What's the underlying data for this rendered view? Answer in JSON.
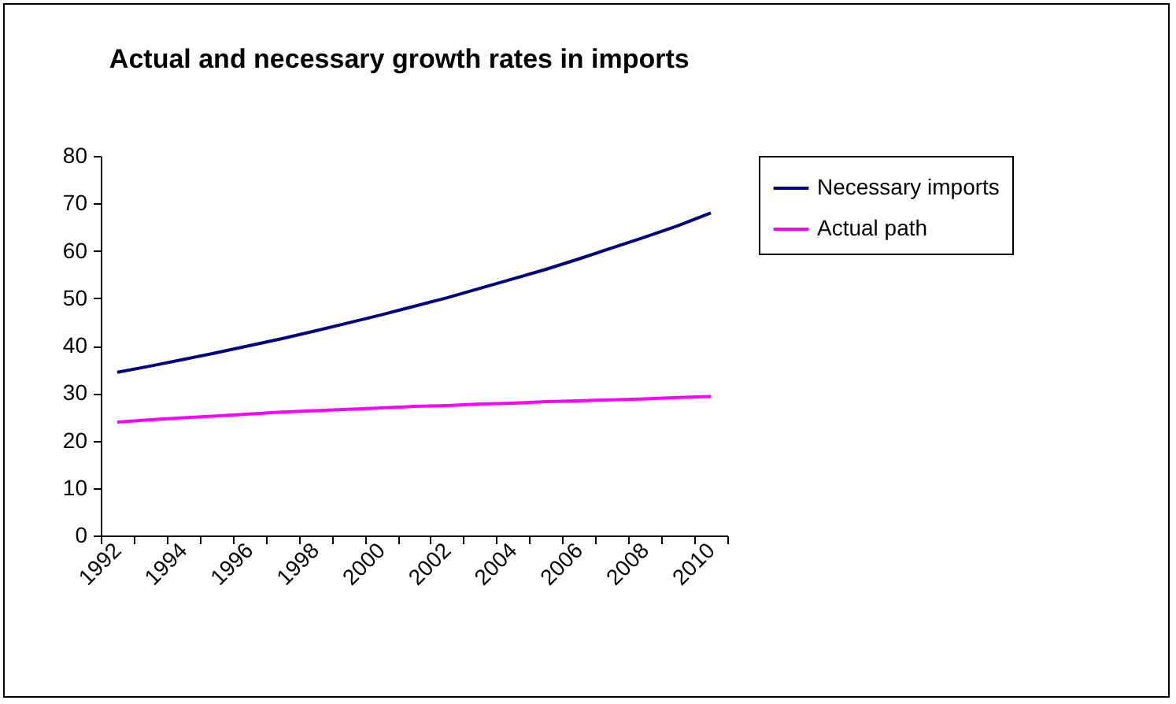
{
  "chart_data": {
    "type": "line",
    "title": "Actual and necessary growth rates in imports",
    "categories": [
      "1992",
      null,
      "1994",
      null,
      "1996",
      null,
      "1998",
      null,
      "2000",
      null,
      "2002",
      null,
      "2004",
      null,
      "2006",
      null,
      "2008",
      null,
      "2010"
    ],
    "series": [
      {
        "name": "Necessary imports",
        "color": "#000080",
        "values": [
          34.4,
          35.7,
          37.1,
          38.5,
          40.0,
          41.5,
          43.1,
          44.8,
          46.5,
          48.3,
          50.1,
          52.1,
          54.1,
          56.1,
          58.3,
          60.6,
          62.9,
          65.3,
          68.0
        ]
      },
      {
        "name": "Actual path",
        "color": "#ff00ff",
        "values": [
          23.9,
          24.4,
          24.8,
          25.2,
          25.6,
          26.0,
          26.3,
          26.6,
          26.9,
          27.2,
          27.4,
          27.7,
          27.9,
          28.2,
          28.4,
          28.6,
          28.8,
          29.1,
          29.3
        ]
      }
    ],
    "ylim": [
      0,
      80
    ],
    "yticks": [
      0,
      10,
      20,
      30,
      40,
      50,
      60,
      70,
      80
    ],
    "grid": false,
    "legend": "right",
    "marker": "none",
    "line_style": "solid"
  }
}
